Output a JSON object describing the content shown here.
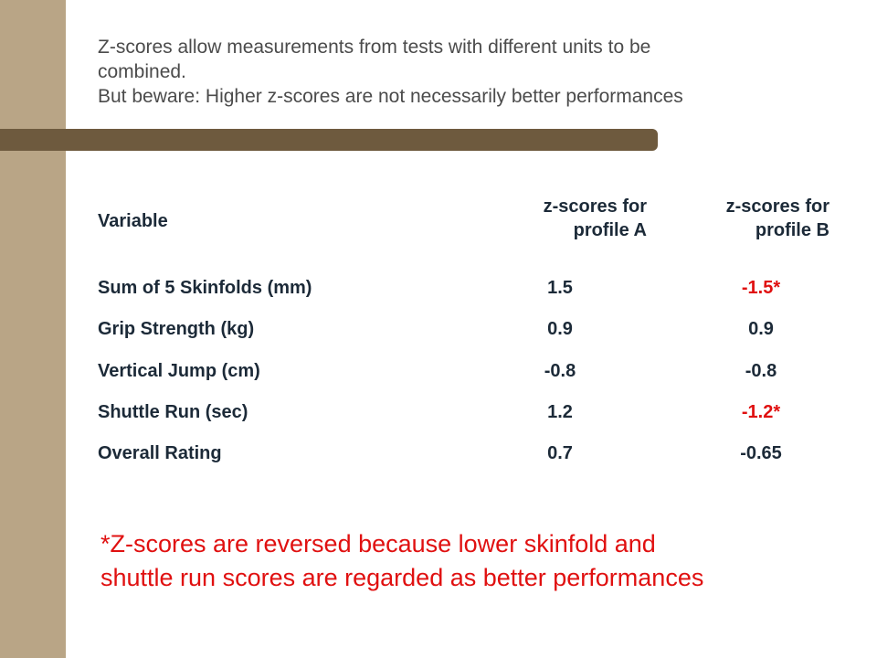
{
  "colors": {
    "side_band": "#b9a586",
    "title_bar": "#6e5a3e",
    "body_text": "#4b4b4b",
    "table_text": "#1c2a38",
    "highlight": "#e01010"
  },
  "header": {
    "line1": "Z-scores allow measurements from tests with different units to be",
    "line2": "combined.",
    "line3": "But beware: Higher z-scores are not necessarily better performances"
  },
  "table": {
    "col_variable": "Variable",
    "col_a": {
      "line1": "z-scores for",
      "line2": "profile A"
    },
    "col_b": {
      "line1": "z-scores for",
      "line2": "profile B"
    },
    "rows": [
      {
        "name": "Sum of 5 Skinfolds (mm)",
        "a": "1.5",
        "b": "-1.5*"
      },
      {
        "name": "Grip Strength (kg)",
        "a": "0.9",
        "b": "0.9"
      },
      {
        "name": "Vertical Jump (cm)",
        "a": "-0.8",
        "b": "-0.8"
      },
      {
        "name": "Shuttle Run (sec)",
        "a": "1.2",
        "b": "-1.2*"
      },
      {
        "name": "Overall Rating",
        "a": "0.7",
        "b": "-0.65"
      }
    ]
  },
  "footnote": {
    "line1": "*Z-scores are reversed because lower skinfold and",
    "line2": "shuttle run scores are regarded as better performances"
  }
}
